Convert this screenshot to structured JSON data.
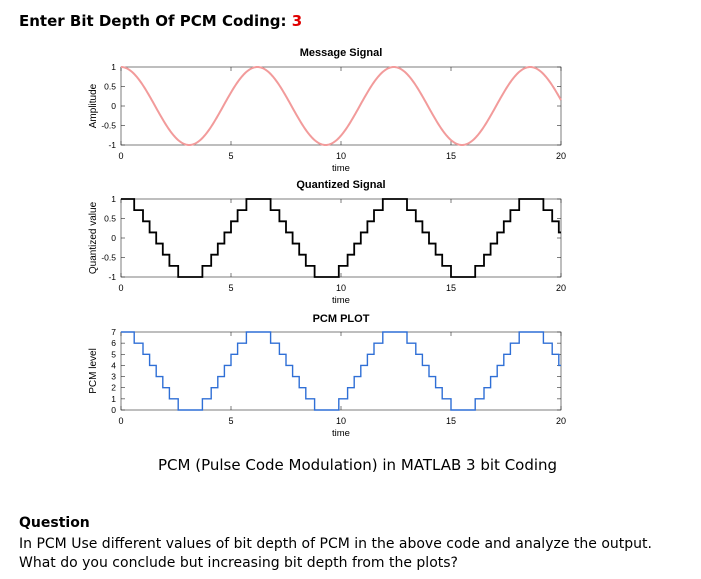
{
  "heading": {
    "label": "Enter Bit Depth Of PCM Coding:",
    "value": "3"
  },
  "caption": "PCM (Pulse Code Modulation) in MATLAB 3 bit Coding",
  "question": {
    "title": "Question",
    "lines": [
      "In PCM Use different values of bit depth of PCM in the above code and analyze the output.",
      "What do you conclude but increasing bit depth from the plots?"
    ]
  },
  "colors": {
    "message": "#f29b9b",
    "quantized": "#000000",
    "pcm": "#2f6fd6",
    "axis": "#262626"
  },
  "chart_data": [
    {
      "type": "line",
      "title": "Message Signal",
      "xlabel": "time",
      "ylabel": "Amplitude",
      "xlim": [
        0,
        20
      ],
      "ylim": [
        -1,
        1
      ],
      "xticks": [
        0,
        5,
        10,
        15,
        20
      ],
      "yticks": [
        -1,
        -0.5,
        0,
        0.5,
        1
      ],
      "signal": "cos(2*pi*t/6.2)",
      "grid": false
    },
    {
      "type": "line",
      "title": "Quantized Signal",
      "xlabel": "time",
      "ylabel": "Quantized value",
      "xlim": [
        0,
        20
      ],
      "ylim": [
        -1,
        1
      ],
      "xticks": [
        0,
        5,
        10,
        15,
        20
      ],
      "yticks": [
        -1,
        -0.5,
        0,
        0.5,
        1
      ],
      "bit_depth": 3,
      "grid": false
    },
    {
      "type": "line",
      "title": "PCM PLOT",
      "xlabel": "time",
      "ylabel": "PCM level",
      "xlim": [
        0,
        20
      ],
      "ylim": [
        0,
        7
      ],
      "xticks": [
        0,
        5,
        10,
        15,
        20
      ],
      "yticks": [
        0,
        1,
        2,
        3,
        4,
        5,
        6,
        7
      ],
      "levels": 8,
      "grid": false
    }
  ]
}
